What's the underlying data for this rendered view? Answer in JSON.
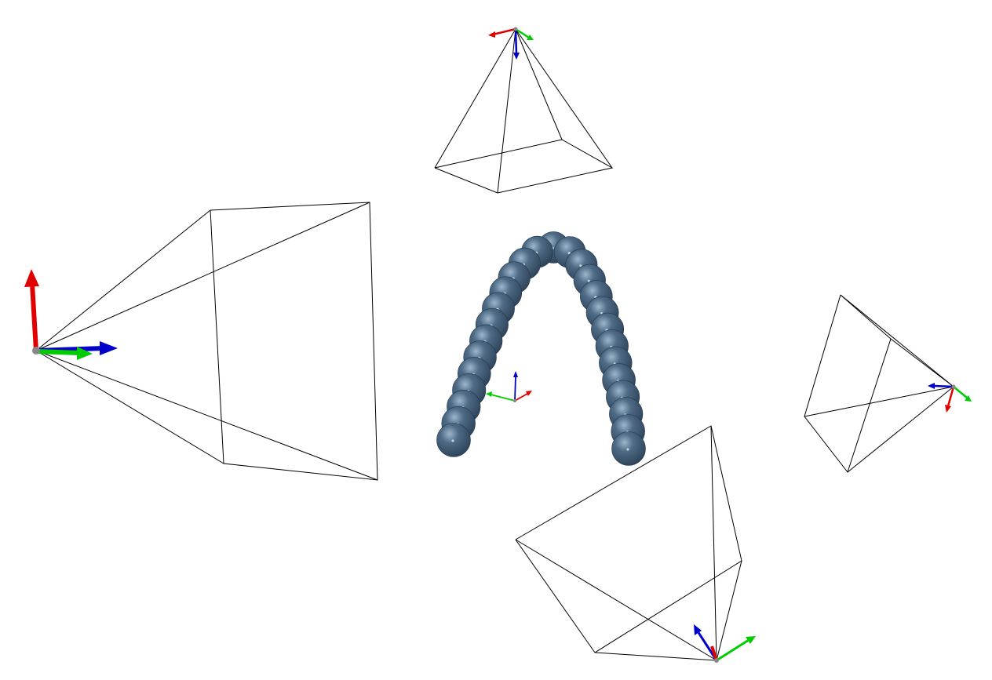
{
  "scene": {
    "background": "#ffffff",
    "wire_color": "#000000",
    "axis_colors": {
      "x": "#e00000",
      "y": "#00cc00",
      "z": "#0000cc"
    },
    "bead_color": "#3c5670",
    "bead_highlight": "#8fa9c2",
    "bead_count": 27,
    "camera_frustum_count": 4,
    "objects": [
      "world-axes-triad",
      "bead-chain",
      "camera-frustum-top",
      "camera-frustum-left",
      "camera-frustum-right",
      "camera-frustum-bottom"
    ]
  }
}
